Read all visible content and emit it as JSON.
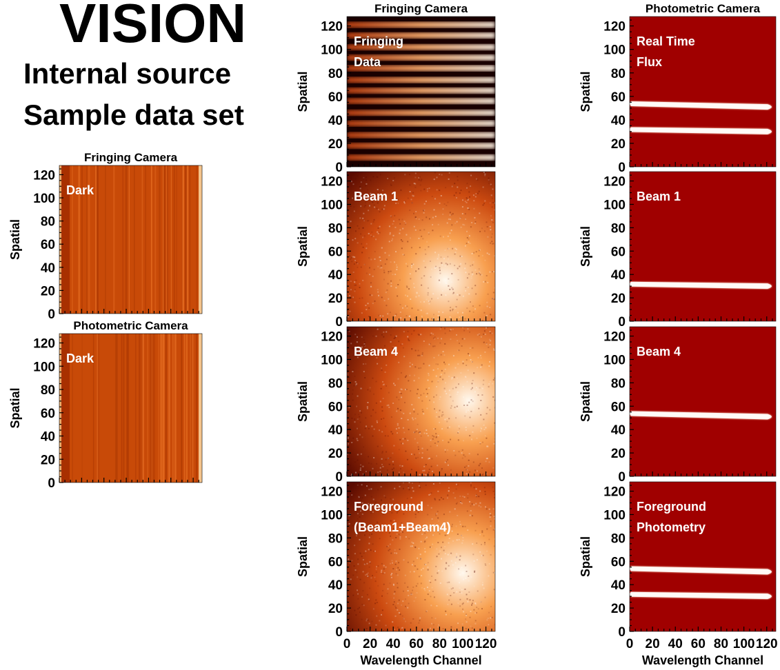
{
  "header": {
    "title": "VISION",
    "subtitle_line1": "Internal source",
    "subtitle_line2": "Sample data set"
  },
  "colors": {
    "dark_frame": "#c84a08",
    "photometric_background": "#a00000",
    "fringe_dark": "#1a0000",
    "fringe_bright": "#fff4e6",
    "beam_dark": "#5a0a00",
    "beam_bright": "#fff8ee",
    "flux_stripe": "#ffffff",
    "panel_label": "#ffffff"
  },
  "chart_data": [
    {
      "type": "heatmap",
      "id": "dark-fringing",
      "title": "Fringing Camera",
      "label": [
        "Dark"
      ],
      "ylabel": "Spatial",
      "ylim": [
        0,
        128
      ],
      "yticks": [
        0,
        20,
        40,
        60,
        80,
        100,
        120
      ],
      "xlim": [
        0,
        128
      ],
      "pattern": "vertical-stripes"
    },
    {
      "type": "heatmap",
      "id": "dark-photometric",
      "title": "Photometric Camera",
      "label": [
        "Dark"
      ],
      "ylabel": "Spatial",
      "ylim": [
        0,
        128
      ],
      "yticks": [
        0,
        20,
        40,
        60,
        80,
        100,
        120
      ],
      "xlim": [
        0,
        128
      ],
      "pattern": "vertical-stripes"
    },
    {
      "type": "heatmap",
      "id": "fringing-data",
      "title": "Fringing Camera",
      "label": [
        "Fringing",
        "Data"
      ],
      "ylabel": "Spatial",
      "ylim": [
        0,
        128
      ],
      "yticks": [
        0,
        20,
        40,
        60,
        80,
        100,
        120
      ],
      "xlim": [
        0,
        128
      ],
      "pattern": "fringes",
      "fringe_rows": [
        8,
        18,
        27,
        37,
        46,
        56,
        65,
        74,
        84,
        93,
        102,
        112,
        121
      ]
    },
    {
      "type": "heatmap",
      "id": "fringing-beam1",
      "label": [
        "Beam 1"
      ],
      "ylabel": "Spatial",
      "ylim": [
        0,
        128
      ],
      "yticks": [
        0,
        20,
        40,
        60,
        80,
        100,
        120
      ],
      "xlim": [
        0,
        128
      ],
      "pattern": "diffuse",
      "peak_x": 85,
      "peak_y": 35
    },
    {
      "type": "heatmap",
      "id": "fringing-beam4",
      "label": [
        "Beam 4"
      ],
      "ylabel": "Spatial",
      "ylim": [
        0,
        128
      ],
      "yticks": [
        0,
        20,
        40,
        60,
        80,
        100,
        120
      ],
      "xlim": [
        0,
        128
      ],
      "pattern": "diffuse",
      "peak_x": 105,
      "peak_y": 65
    },
    {
      "type": "heatmap",
      "id": "fringing-foreground",
      "label": [
        "Foreground",
        "(Beam1+Beam4)"
      ],
      "ylabel": "Spatial",
      "xlabel": "Wavelength Channel",
      "ylim": [
        0,
        128
      ],
      "yticks": [
        0,
        20,
        40,
        60,
        80,
        100,
        120
      ],
      "xlim": [
        0,
        128
      ],
      "xticks": [
        0,
        20,
        40,
        60,
        80,
        100,
        120
      ],
      "pattern": "diffuse",
      "peak_x": 100,
      "peak_y": 50
    },
    {
      "type": "heatmap",
      "id": "photometric-flux",
      "title": "Photometric Camera",
      "label": [
        "Real Time",
        "Flux"
      ],
      "ylabel": "Spatial",
      "ylim": [
        0,
        128
      ],
      "yticks": [
        0,
        20,
        40,
        60,
        80,
        100,
        120
      ],
      "xlim": [
        0,
        128
      ],
      "pattern": "stripes",
      "stripes": [
        [
          0,
          54,
          128,
          51
        ],
        [
          0,
          32,
          128,
          30
        ]
      ]
    },
    {
      "type": "heatmap",
      "id": "photometric-beam1",
      "label": [
        "Beam 1"
      ],
      "ylabel": "Spatial",
      "ylim": [
        0,
        128
      ],
      "yticks": [
        0,
        20,
        40,
        60,
        80,
        100,
        120
      ],
      "xlim": [
        0,
        128
      ],
      "pattern": "stripes",
      "stripes": [
        [
          0,
          32,
          128,
          30
        ]
      ]
    },
    {
      "type": "heatmap",
      "id": "photometric-beam4",
      "label": [
        "Beam 4"
      ],
      "ylabel": "Spatial",
      "ylim": [
        0,
        128
      ],
      "yticks": [
        0,
        20,
        40,
        60,
        80,
        100,
        120
      ],
      "xlim": [
        0,
        128
      ],
      "pattern": "stripes",
      "stripes": [
        [
          0,
          54,
          128,
          51
        ]
      ]
    },
    {
      "type": "heatmap",
      "id": "photometric-foreground",
      "label": [
        "Foreground",
        "Photometry"
      ],
      "ylabel": "Spatial",
      "xlabel": "Wavelength Channel",
      "ylim": [
        0,
        128
      ],
      "yticks": [
        0,
        20,
        40,
        60,
        80,
        100,
        120
      ],
      "xlim": [
        0,
        128
      ],
      "xticks": [
        0,
        20,
        40,
        60,
        80,
        100,
        120
      ],
      "pattern": "stripes",
      "stripes": [
        [
          0,
          54,
          128,
          51
        ],
        [
          0,
          32,
          128,
          30
        ]
      ]
    }
  ]
}
